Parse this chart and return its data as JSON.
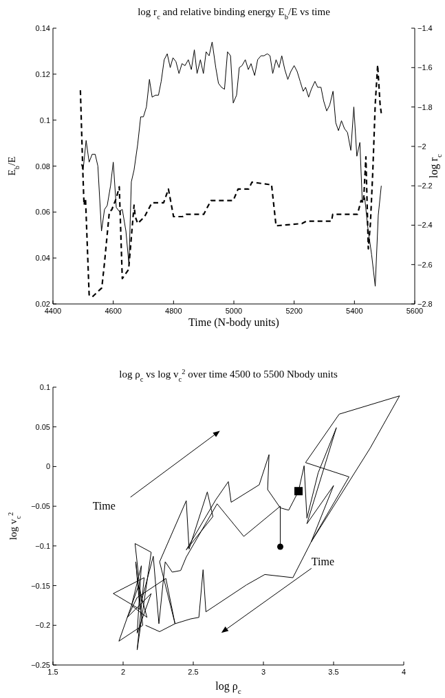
{
  "chart_data": [
    {
      "type": "line",
      "title": "log r$_{c}$ and relative binding energy E$_{b}$/E vs time",
      "xlabel": "Time (N-body units)",
      "ylabel": "E$_{b}$/E",
      "y2label": "log r$_{c}$",
      "xlim": [
        4400,
        5600
      ],
      "xticks": [
        4400,
        4600,
        4800,
        5000,
        5200,
        5400,
        5600
      ],
      "ylim": [
        0.02,
        0.14
      ],
      "yticks": [
        0.02,
        0.04,
        0.06,
        0.08,
        0.1,
        0.12,
        0.14
      ],
      "y2lim": [
        -2.8,
        -1.4
      ],
      "y2ticks": [
        -2.8,
        -2.6,
        -2.4,
        -2.2,
        -2,
        -1.8,
        -1.6,
        -1.4
      ],
      "series": [
        {
          "color": "#000000",
          "axis": "y2",
          "line_style": "solid",
          "x": [
            4494,
            4500,
            4510,
            4520,
            4530,
            4540,
            4549,
            4561,
            4571,
            4580,
            4591,
            4600,
            4610,
            4620,
            4630,
            4642,
            4652,
            4660,
            4669,
            4681,
            4691,
            4700,
            4710,
            4720,
            4729,
            4740,
            4750,
            4759,
            4769,
            4779,
            4789,
            4798,
            4808,
            4818,
            4828,
            4838,
            4849,
            4859,
            4869,
            4878,
            4889,
            4899,
            4908,
            4918,
            4928,
            4940,
            4949,
            4959,
            4969,
            4979,
            4989,
            4998,
            5009,
            5018,
            5027,
            5038,
            5048,
            5057,
            5069,
            5079,
            5090,
            5100,
            5111,
            5120,
            5129,
            5140,
            5150,
            5159,
            5169,
            5179,
            5189,
            5200,
            5210,
            5220,
            5230,
            5238,
            5248,
            5257,
            5269,
            5278,
            5289,
            5298,
            5308,
            5318,
            5329,
            5338,
            5347,
            5357,
            5367,
            5377,
            5388,
            5398,
            5408,
            5418,
            5426,
            5434,
            5445,
            5457,
            5469,
            5479,
            5489
          ],
          "values": [
            -2.09,
            -2.12,
            -1.97,
            -2.08,
            -2.04,
            -2.04,
            -2.1,
            -2.43,
            -2.32,
            -2.3,
            -2.2,
            -2.08,
            -2.31,
            -2.33,
            -2.32,
            -2.43,
            -2.6,
            -2.18,
            -2.12,
            -1.99,
            -1.85,
            -1.85,
            -1.8,
            -1.66,
            -1.75,
            -1.74,
            -1.74,
            -1.67,
            -1.56,
            -1.53,
            -1.6,
            -1.55,
            -1.57,
            -1.63,
            -1.58,
            -1.59,
            -1.56,
            -1.61,
            -1.51,
            -1.63,
            -1.56,
            -1.63,
            -1.52,
            -1.54,
            -1.47,
            -1.6,
            -1.68,
            -1.7,
            -1.71,
            -1.52,
            -1.54,
            -1.78,
            -1.74,
            -1.6,
            -1.59,
            -1.56,
            -1.61,
            -1.58,
            -1.64,
            -1.56,
            -1.54,
            -1.54,
            -1.53,
            -1.54,
            -1.63,
            -1.56,
            -1.6,
            -1.54,
            -1.61,
            -1.66,
            -1.62,
            -1.59,
            -1.62,
            -1.67,
            -1.72,
            -1.7,
            -1.75,
            -1.71,
            -1.67,
            -1.7,
            -1.7,
            -1.77,
            -1.82,
            -1.79,
            -1.72,
            -1.88,
            -1.92,
            -1.87,
            -1.91,
            -1.93,
            -2.02,
            -1.8,
            -2.05,
            -1.98,
            -2.28,
            -2.26,
            -2.42,
            -2.55,
            -2.71,
            -2.35,
            -2.2
          ]
        },
        {
          "color": "#000000",
          "line_style": "dashed",
          "x": [
            4491,
            4499,
            4503,
            4508,
            4520,
            4530,
            4562,
            4571,
            4587,
            4595,
            4610,
            4620,
            4630,
            4640,
            4651,
            4669,
            4673,
            4681,
            4704,
            4728,
            4767,
            4783,
            4800,
            4830,
            4842,
            4900,
            4924,
            4998,
            5014,
            5049,
            5060,
            5116,
            5125,
            5140,
            5226,
            5240,
            5324,
            5328,
            5410,
            5422,
            5430,
            5438,
            5446,
            5453,
            5461,
            5469,
            5477,
            5485,
            5489
          ],
          "values": [
            0.113,
            0.078,
            0.063,
            0.066,
            0.024,
            0.023,
            0.027,
            0.038,
            0.06,
            0.061,
            0.066,
            0.071,
            0.031,
            0.033,
            0.035,
            0.063,
            0.058,
            0.055,
            0.058,
            0.064,
            0.064,
            0.07,
            0.058,
            0.058,
            0.059,
            0.059,
            0.065,
            0.065,
            0.07,
            0.07,
            0.073,
            0.072,
            0.072,
            0.054,
            0.055,
            0.056,
            0.056,
            0.059,
            0.059,
            0.065,
            0.064,
            0.084,
            0.044,
            0.055,
            0.078,
            0.107,
            0.124,
            0.107,
            0.103
          ]
        }
      ]
    },
    {
      "type": "line",
      "title": "log ρ$_{c}$ vs log v$_{c}$$^{2}$ over time 4500 to 5500 Nbody units",
      "xlabel": "log ρ$_{c}$",
      "ylabel": "log v$_{c}$$^{2}$",
      "xlim": [
        1.5,
        4
      ],
      "xticks": [
        1.5,
        2,
        2.5,
        3,
        3.5,
        4
      ],
      "ylim": [
        -0.25,
        0.1
      ],
      "yticks": [
        -0.25,
        -0.2,
        -0.15,
        -0.1,
        -0.05,
        0,
        0.05,
        0.1
      ],
      "annotations": [
        "Time",
        "Time"
      ],
      "series": [
        {
          "color": "#000000",
          "line_style": "solid",
          "x": [
            3.12,
            3.12,
            2.86,
            2.67,
            2.45,
            2.41,
            2.35,
            2.3,
            2.255,
            2.215,
            2.13,
            2.085,
            2.2,
            2.1,
            2.15,
            1.93,
            2.12,
            2.09,
            2.14,
            1.97,
            2.11,
            2.17,
            2.06,
            2.13,
            2.1,
            2.2,
            2.03,
            2.1,
            2.305,
            2.37,
            2.26,
            2.45,
            2.47,
            2.6,
            2.64,
            2.45,
            2.66,
            2.75,
            2.77,
            2.97,
            3.04,
            3.03,
            3.12,
            3.18,
            3.25,
            3.29,
            3.31,
            3.39,
            3.52,
            3.31,
            3.5,
            3.34,
            3.61,
            3.3,
            3.54,
            3.97,
            3.76,
            3.34,
            3.21,
            3.01,
            2.88,
            2.59,
            2.57,
            2.54,
            2.48,
            2.37,
            2.26,
            2.16
          ],
          "values": [
            -0.101,
            -0.05,
            -0.088,
            -0.047,
            -0.114,
            -0.131,
            -0.133,
            -0.12,
            -0.198,
            -0.113,
            -0.17,
            -0.097,
            -0.108,
            -0.231,
            -0.14,
            -0.16,
            -0.18,
            -0.12,
            -0.2,
            -0.22,
            -0.15,
            -0.19,
            -0.175,
            -0.125,
            -0.21,
            -0.16,
            -0.19,
            -0.165,
            -0.141,
            -0.198,
            -0.12,
            -0.043,
            -0.104,
            -0.032,
            -0.063,
            -0.105,
            -0.042,
            -0.019,
            -0.045,
            -0.023,
            0.015,
            -0.029,
            -0.052,
            -0.055,
            -0.031,
            0.001,
            -0.065,
            -0.008,
            0.049,
            -0.072,
            -0.024,
            -0.095,
            -0.013,
            0.005,
            0.066,
            0.089,
            0.023,
            -0.095,
            -0.14,
            -0.136,
            -0.149,
            -0.183,
            -0.13,
            -0.19,
            -0.192,
            -0.198,
            -0.208,
            -0.2
          ]
        },
        {
          "type": "scatter",
          "color": "#000000",
          "marker": "square",
          "x": [
            3.25
          ],
          "values": [
            -0.031
          ]
        },
        {
          "type": "scatter",
          "color": "#000000",
          "marker": "circle",
          "x": [
            3.12
          ],
          "values": [
            -0.101
          ]
        }
      ]
    }
  ]
}
